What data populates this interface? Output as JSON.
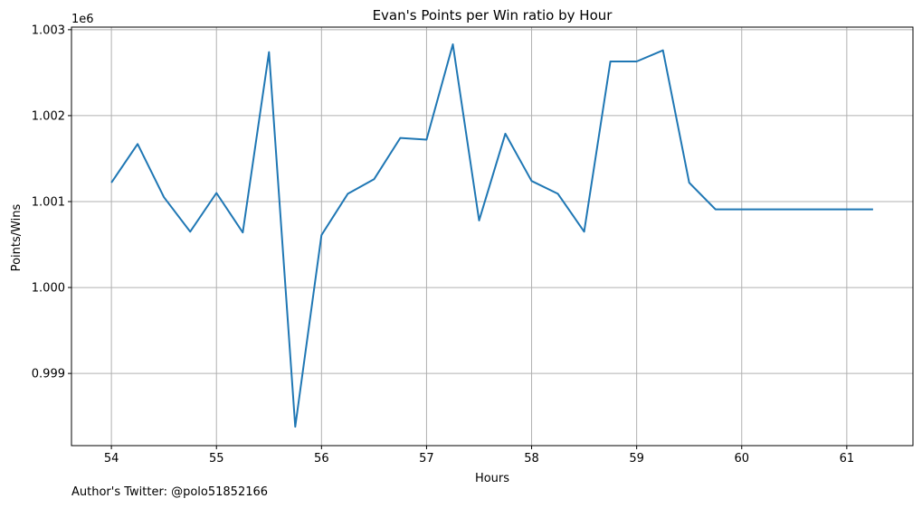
{
  "footer": {
    "text": "Author's Twitter: @polo51852166"
  },
  "chart_data": {
    "type": "line",
    "title": "Evan's Points per Win ratio by Hour",
    "xlabel": "Hours",
    "ylabel": "Points/Wins",
    "y_offset_label": "1e6",
    "xlim": [
      53.62,
      61.63
    ],
    "ylim": [
      998160,
      1003030
    ],
    "xticks": [
      54,
      55,
      56,
      57,
      58,
      59,
      60,
      61
    ],
    "xtick_labels": [
      "54",
      "55",
      "56",
      "57",
      "58",
      "59",
      "60",
      "61"
    ],
    "yticks": [
      999000,
      1000000,
      1001000,
      1002000,
      1003000
    ],
    "ytick_labels": [
      "0.999",
      "1.000",
      "1.001",
      "1.002",
      "1.003"
    ],
    "grid": true,
    "line_color": "#1f77b4",
    "series": [
      {
        "x": [
          54.0,
          54.25,
          54.5,
          54.75,
          55.0,
          55.25,
          55.5,
          55.75,
          56.0,
          56.25,
          56.5,
          56.75,
          57.0,
          57.25,
          57.5,
          57.75,
          58.0,
          58.25,
          58.5,
          58.75,
          59.0,
          59.25,
          59.5,
          59.75,
          60.0,
          60.25,
          60.5,
          60.75,
          61.0,
          61.25
        ],
        "values": [
          1001220,
          1001670,
          1001050,
          1000650,
          1001100,
          1000640,
          1002740,
          998380,
          1000610,
          1001090,
          1001260,
          1001740,
          1001720,
          1002830,
          1000780,
          1001790,
          1001240,
          1001090,
          1000650,
          1002630,
          1002630,
          1002760,
          1001220,
          1000910,
          1000910,
          1000910,
          1000910,
          1000910,
          1000910,
          1000910
        ]
      }
    ]
  }
}
